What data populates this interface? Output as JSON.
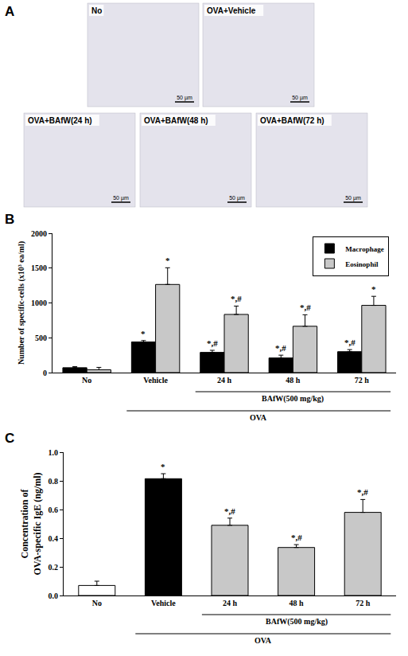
{
  "micrographs": {
    "panel_label": "A",
    "panels": [
      {
        "title": "No",
        "scale_bar": "50 µm"
      },
      {
        "title": "OVA+Vehicle",
        "scale_bar": "50 µm"
      },
      {
        "title": "OVA+BAfW(24 h)",
        "scale_bar": "50 µm"
      },
      {
        "title": "OVA+BAfW(48 h)",
        "scale_bar": "50 µm"
      },
      {
        "title": "OVA+BAfW(72 h)",
        "scale_bar": "50 µm"
      }
    ]
  },
  "chart_data": [
    {
      "type": "bar",
      "panel_label": "B",
      "y_label": "Number of specific-cells (x10³ ea/ml)",
      "categories": [
        "No",
        "Vehicle",
        "24 h",
        "48 h",
        "72 h"
      ],
      "series": [
        {
          "name": "Macrophage",
          "color": "#000000",
          "values": [
            70,
            440,
            290,
            210,
            300
          ],
          "errors": [
            15,
            20,
            30,
            40,
            30
          ],
          "significance": [
            null,
            "*",
            "*,#",
            "*,#",
            "*,#"
          ]
        },
        {
          "name": "Eosinophil",
          "color": "#c8c8c8",
          "values": [
            40,
            1265,
            835,
            665,
            965
          ],
          "errors": [
            35,
            240,
            120,
            165,
            130
          ],
          "significance": [
            null,
            "*",
            "*,#",
            "*,#",
            "*"
          ]
        }
      ],
      "group_labels": [
        {
          "text": "BAfW(500 mg/kg)",
          "from": "24 h",
          "to": "72 h"
        },
        {
          "text": "OVA",
          "from": "Vehicle",
          "to": "72 h"
        }
      ],
      "ylim": [
        0,
        2000
      ],
      "yticks": [
        0,
        500,
        1000,
        1500,
        2000
      ],
      "grid": false,
      "legend": "top right"
    },
    {
      "type": "bar",
      "panel_label": "C",
      "y_label": "Concentration of\nOVA-specific IgE (ng/ml)",
      "categories": [
        "No",
        "Vehicle",
        "24 h",
        "48 h",
        "72 h"
      ],
      "values": [
        0.07,
        0.815,
        0.49,
        0.335,
        0.58
      ],
      "errors": [
        0.03,
        0.035,
        0.05,
        0.02,
        0.09
      ],
      "significance": [
        null,
        "*",
        "*,#",
        "*,#",
        "*,#"
      ],
      "colors": [
        "#ffffff",
        "#000000",
        "#c8c8c8",
        "#c8c8c8",
        "#c8c8c8"
      ],
      "group_labels": [
        {
          "text": "BAfW(500 mg/kg)",
          "from": "24 h",
          "to": "72 h"
        },
        {
          "text": "OVA",
          "from": "Vehicle",
          "to": "72 h"
        }
      ],
      "ylim": [
        0,
        1.0
      ],
      "yticks": [
        {
          "value": 0,
          "label": "0.0"
        },
        0.2,
        0.4,
        0.6,
        0.8,
        {
          "value": 1.0,
          "label": "1.0"
        }
      ],
      "grid": false
    }
  ]
}
